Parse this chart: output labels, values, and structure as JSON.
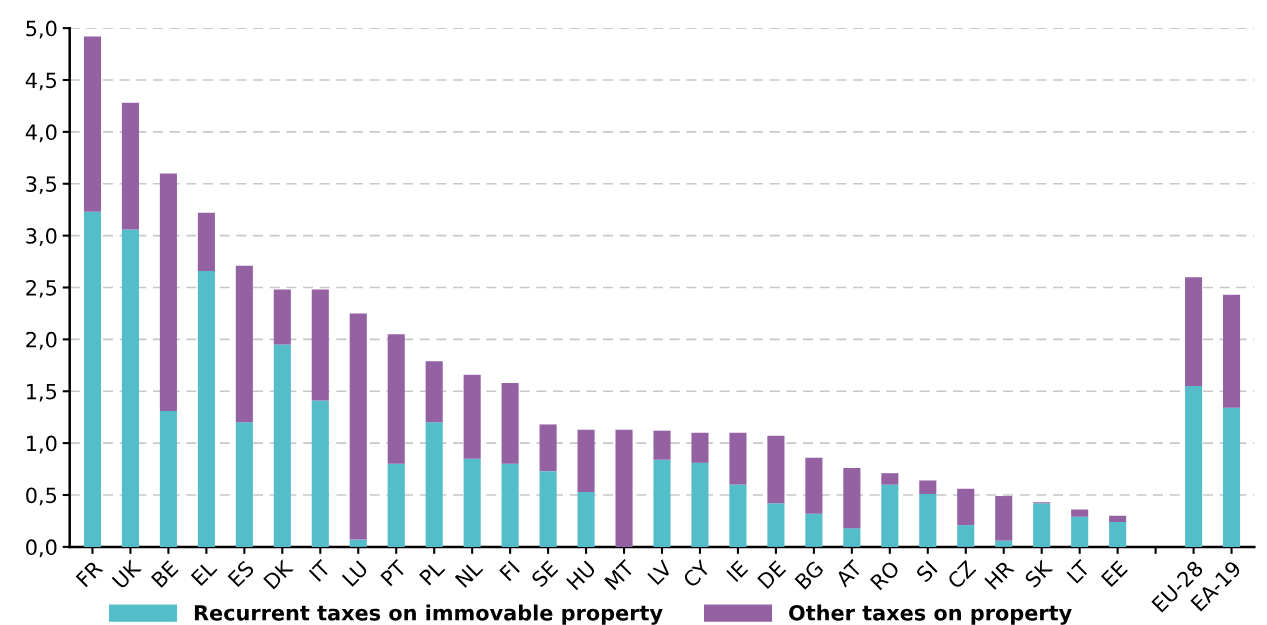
{
  "chart_data": {
    "type": "bar",
    "stacked": true,
    "grid": "y",
    "legend": "bottom",
    "categories": [
      "FR",
      "UK",
      "BE",
      "EL",
      "ES",
      "DK",
      "IT",
      "LU",
      "PT",
      "PL",
      "NL",
      "FI",
      "SE",
      "HU",
      "MT",
      "LV",
      "CY",
      "IE",
      "DE",
      "BG",
      "AT",
      "RO",
      "SI",
      "CZ",
      "HR",
      "SK",
      "LT",
      "EE",
      null,
      "EU-28",
      "EA-19"
    ],
    "series": [
      {
        "name": "Recurrent taxes on immovable property",
        "color": "#53bdc9",
        "values": [
          3.23,
          3.06,
          1.31,
          2.66,
          1.2,
          1.95,
          1.41,
          0.07,
          0.8,
          1.2,
          0.85,
          0.8,
          0.73,
          0.53,
          0,
          0.84,
          0.81,
          0.6,
          0.42,
          0.32,
          0.18,
          0.6,
          0.51,
          0.21,
          0.06,
          0.42,
          0.29,
          0.24,
          null,
          1.55,
          1.34
        ]
      },
      {
        "name": "Other taxes on property",
        "color": "#9461a3",
        "values": [
          1.69,
          1.22,
          2.29,
          0.56,
          1.51,
          0.53,
          1.07,
          2.18,
          1.25,
          0.59,
          0.81,
          0.78,
          0.45,
          0.6,
          1.13,
          0.28,
          0.29,
          0.5,
          0.65,
          0.54,
          0.58,
          0.11,
          0.13,
          0.35,
          0.43,
          0.01,
          0.07,
          0.06,
          null,
          1.05,
          1.09
        ]
      }
    ],
    "ylim": [
      0,
      5
    ],
    "yticks": [
      {
        "value": 0,
        "label": "0,0"
      },
      {
        "value": 0.5,
        "label": "0,5"
      },
      {
        "value": 1,
        "label": "1,0"
      },
      {
        "value": 1.5,
        "label": "1,5"
      },
      {
        "value": 2,
        "label": "2,0"
      },
      {
        "value": 2.5,
        "label": "2,5"
      },
      {
        "value": 3,
        "label": "3,0"
      },
      {
        "value": 3.5,
        "label": "3,5"
      },
      {
        "value": 4,
        "label": "4,0"
      },
      {
        "value": 4.5,
        "label": "4,5"
      },
      {
        "value": 5,
        "label": "5,0"
      }
    ]
  }
}
